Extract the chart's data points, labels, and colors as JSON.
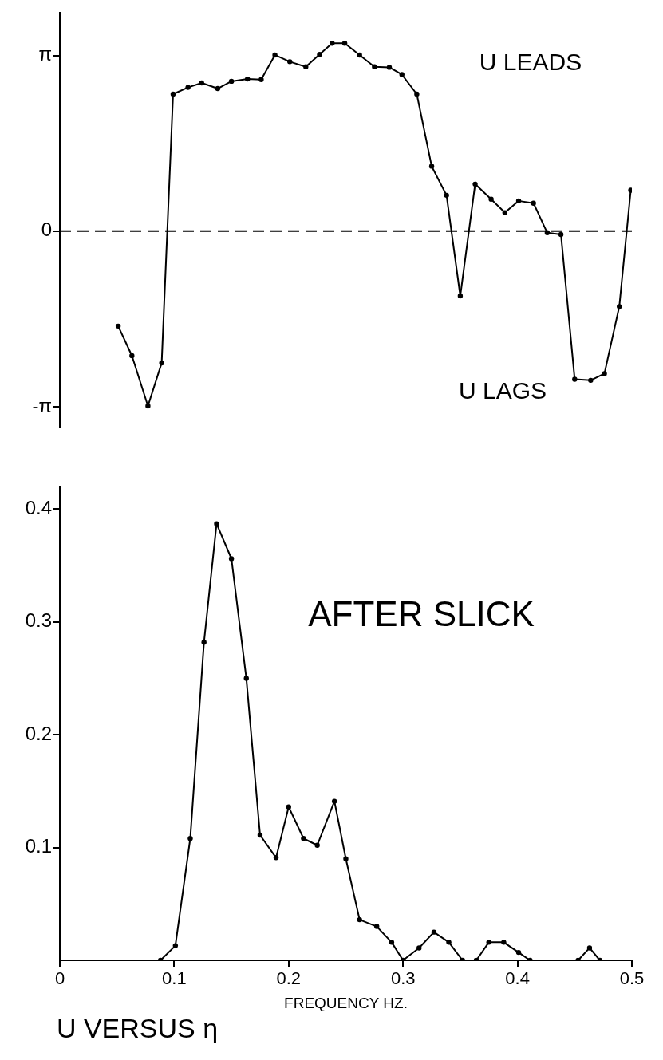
{
  "chart_data": [
    {
      "type": "line",
      "color": "#000000",
      "marker": "circle",
      "line_style": "solid",
      "tick_labels": "y",
      "x": [
        0.051,
        0.063,
        0.077,
        0.089,
        0.099,
        0.112,
        0.124,
        0.138,
        0.15,
        0.164,
        0.176,
        0.188,
        0.201,
        0.215,
        0.227,
        0.238,
        0.249,
        0.262,
        0.275,
        0.288,
        0.299,
        0.312,
        0.325,
        0.338,
        0.35,
        0.363,
        0.377,
        0.389,
        0.401,
        0.414,
        0.426,
        0.438,
        0.45,
        0.464,
        0.476,
        0.489,
        0.499
      ],
      "values": [
        -1.7,
        -2.23,
        -3.13,
        -2.36,
        2.45,
        2.57,
        2.65,
        2.55,
        2.68,
        2.72,
        2.71,
        3.15,
        3.03,
        2.94,
        3.16,
        3.36,
        3.36,
        3.15,
        2.94,
        2.93,
        2.8,
        2.45,
        1.16,
        0.64,
        -1.16,
        0.84,
        0.57,
        0.33,
        0.54,
        0.5,
        -0.03,
        -0.06,
        -2.65,
        -2.67,
        -2.55,
        -1.35,
        0.73
      ],
      "xlim": [
        0,
        0.5
      ],
      "ylim": [
        -3.5,
        3.9
      ],
      "yticks": [
        {
          "value": 3.14159,
          "label": "π"
        },
        {
          "value": 0,
          "label": "0"
        },
        {
          "value": -3.14159,
          "label": "-π"
        }
      ],
      "ref_lines": [
        {
          "axis": "y",
          "value": 0,
          "line_style": "dashed",
          "color": "#000000"
        }
      ],
      "annotations": [
        "U LEADS",
        "U LAGS"
      ]
    },
    {
      "type": "line",
      "color": "#000000",
      "marker": "circle",
      "line_style": "solid",
      "xlabel": "FREQUENCY HZ.",
      "x": [
        0.088,
        0.101,
        0.114,
        0.126,
        0.137,
        0.15,
        0.163,
        0.175,
        0.189,
        0.2,
        0.213,
        0.225,
        0.24,
        0.25,
        0.262,
        0.277,
        0.29,
        0.3,
        0.314,
        0.327,
        0.34,
        0.352,
        0.364,
        0.375,
        0.388,
        0.401,
        0.411,
        0.453,
        0.463,
        0.472
      ],
      "values": [
        0,
        0.013,
        0.108,
        0.282,
        0.387,
        0.356,
        0.25,
        0.111,
        0.091,
        0.136,
        0.108,
        0.102,
        0.141,
        0.09,
        0.036,
        0.03,
        0.016,
        0,
        0.011,
        0.025,
        0.016,
        0,
        0,
        0.016,
        0.016,
        0.007,
        0,
        0,
        0.011,
        0
      ],
      "xlim": [
        0,
        0.5
      ],
      "ylim": [
        0,
        0.42
      ],
      "xticks": [
        0,
        0.1,
        0.2,
        0.3,
        0.4,
        0.5
      ],
      "yticks": [
        0.1,
        0.2,
        0.3,
        0.4
      ],
      "annotations": [
        "AFTER SLICK",
        "U VERSUS η"
      ]
    }
  ]
}
